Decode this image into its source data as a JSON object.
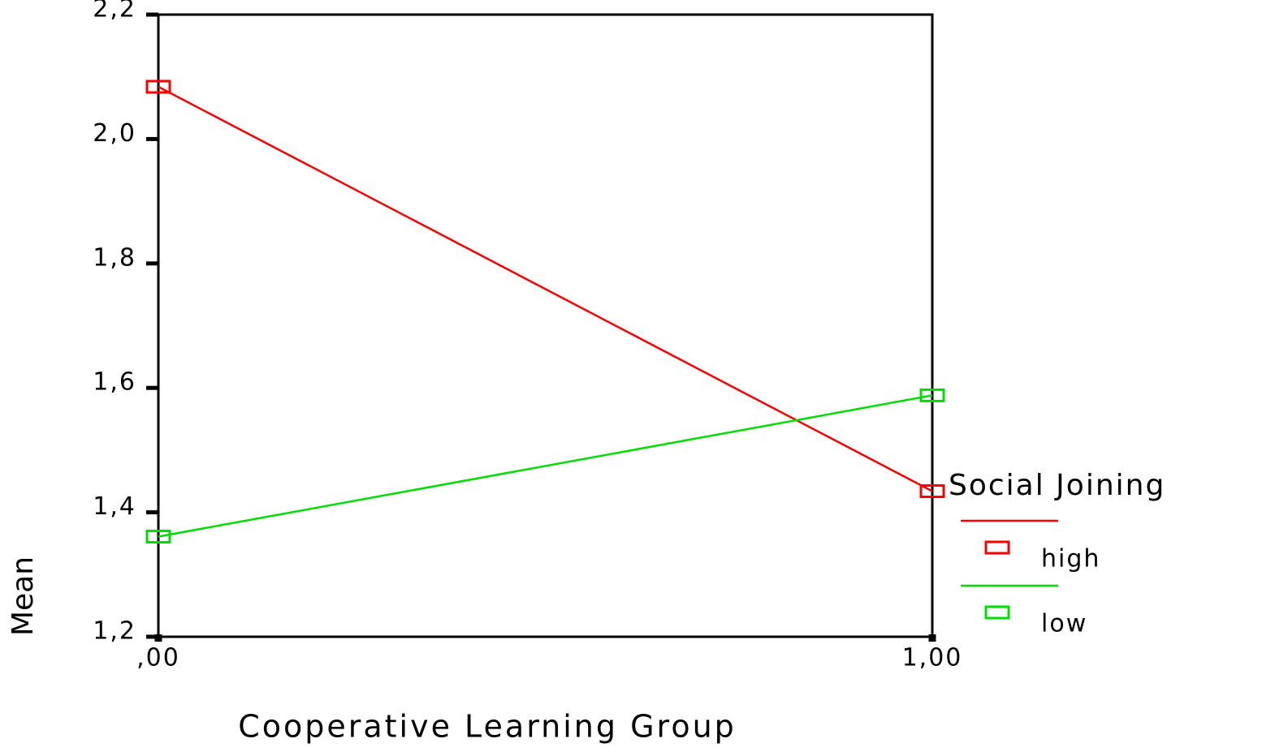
{
  "chart_data": {
    "type": "line",
    "x_label": "Cooperative Learning Group",
    "y_label": "Mean",
    "legend_title": "Social Joining",
    "x": [
      0,
      1
    ],
    "xlim": [
      0,
      1
    ],
    "xticks": [
      {
        "value": 0,
        "label": ",00"
      },
      {
        "value": 1,
        "label": "1,00"
      }
    ],
    "ylim": [
      1.2,
      2.2
    ],
    "yticks": [
      {
        "value": 1.2,
        "label": "1,2"
      },
      {
        "value": 1.4,
        "label": "1,4"
      },
      {
        "value": 1.6,
        "label": "1,6"
      },
      {
        "value": 1.8,
        "label": "1,8"
      },
      {
        "value": 2.0,
        "label": "2,0"
      },
      {
        "value": 2.2,
        "label": "2,2"
      }
    ],
    "series": [
      {
        "name": "high",
        "color": "#ff0000",
        "values": [
          2.084,
          1.434
        ]
      },
      {
        "name": "low",
        "color": "#00e000",
        "values": [
          1.361,
          1.588
        ]
      }
    ]
  }
}
